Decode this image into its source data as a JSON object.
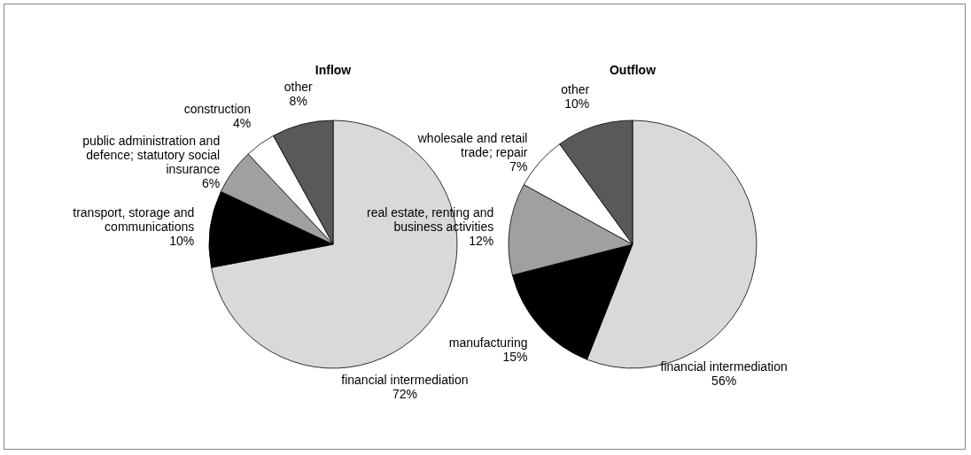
{
  "chart_data": [
    {
      "type": "pie",
      "title": "Inflow",
      "categories": [
        "financial intermediation",
        "transport, storage and communications",
        "public administration and defence; statutory social insurance",
        "construction",
        "other"
      ],
      "values": [
        72,
        10,
        6,
        4,
        8
      ],
      "colors": [
        "#d9d9d9",
        "#000000",
        "#a0a0a0",
        "#ffffff",
        "#595959"
      ],
      "value_labels": [
        "72%",
        "10%",
        "6%",
        "4%",
        "8%"
      ]
    },
    {
      "type": "pie",
      "title": "Outflow",
      "categories": [
        "financial intermediation",
        "manufacturing",
        "real estate, renting and business activities",
        "wholesale and retail trade; repair",
        "other"
      ],
      "values": [
        56,
        15,
        12,
        7,
        10
      ],
      "colors": [
        "#d9d9d9",
        "#000000",
        "#a0a0a0",
        "#ffffff",
        "#595959"
      ],
      "value_labels": [
        "56%",
        "15%",
        "12%",
        "7%",
        "10%"
      ]
    }
  ]
}
